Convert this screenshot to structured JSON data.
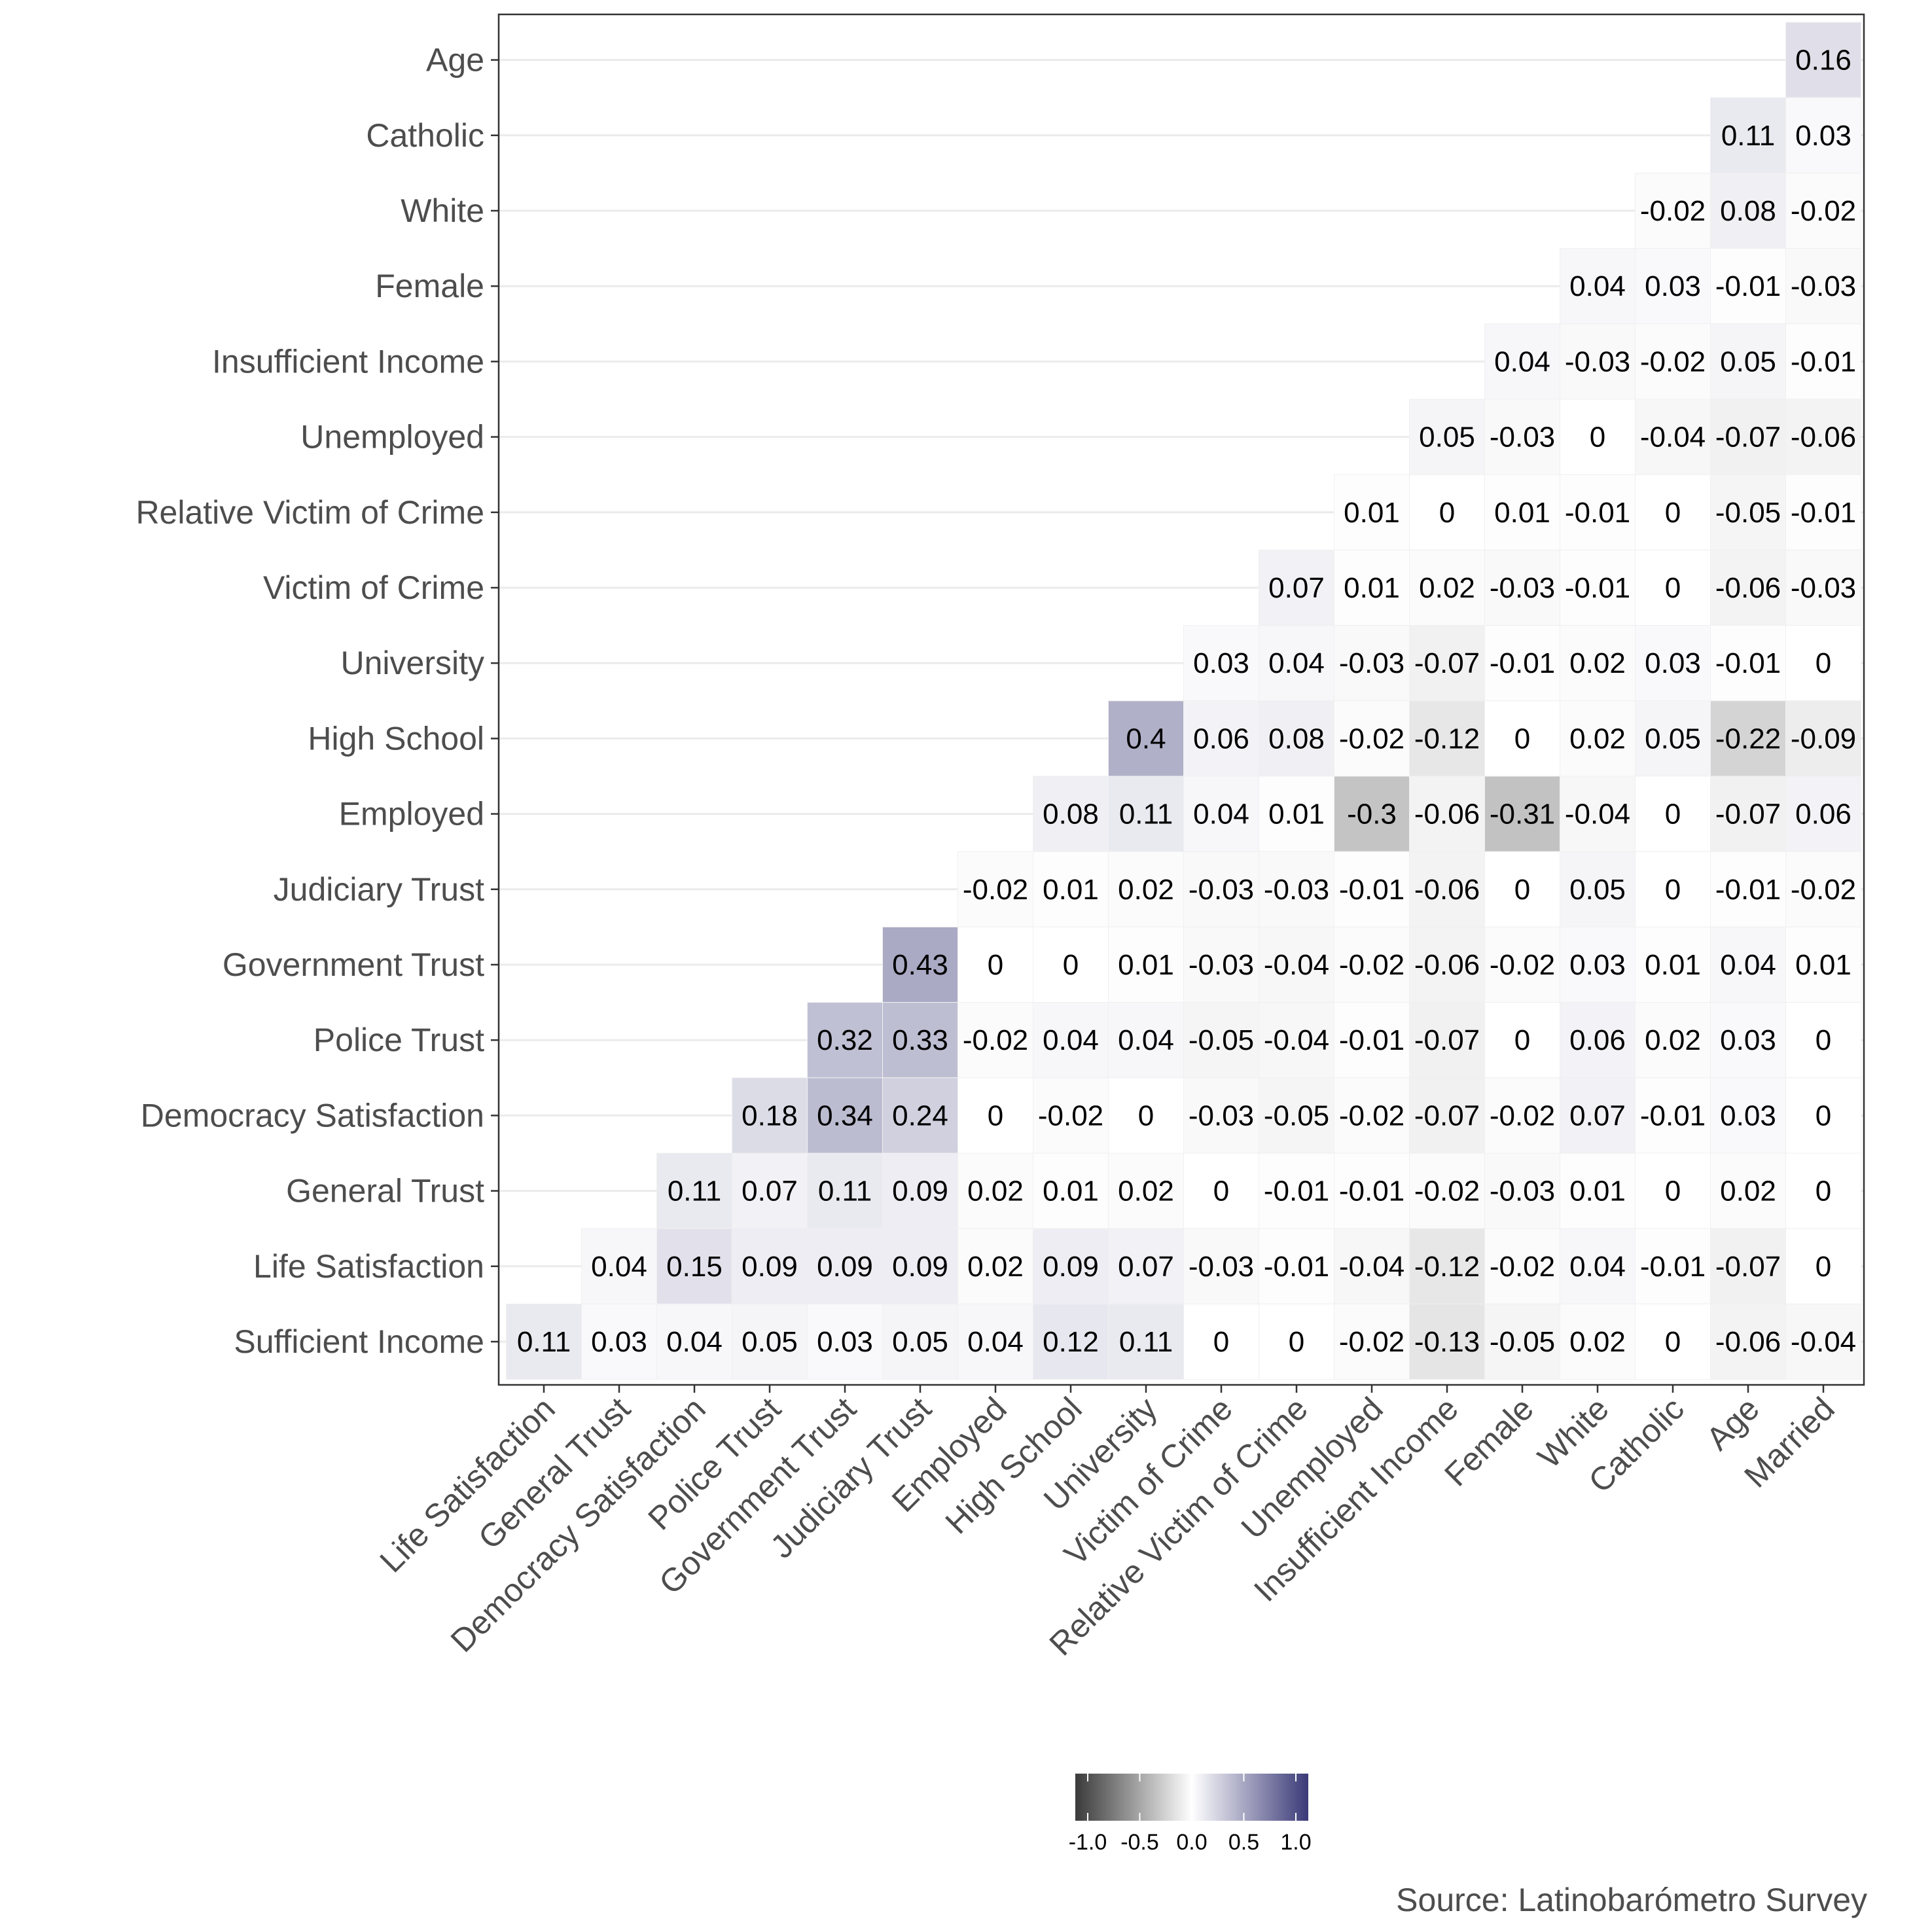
{
  "chart_data": {
    "type": "heatmap",
    "x_categories": [
      "Life Satisfaction",
      "General Trust",
      "Democracy Satisfaction",
      "Police Trust",
      "Government Trust",
      "Judiciary Trust",
      "Employed",
      "High School",
      "University",
      "Victim of Crime",
      "Relative Victim of Crime",
      "Unemployed",
      "Insufficient Income",
      "Female",
      "White",
      "Catholic",
      "Age",
      "Married"
    ],
    "y_categories": [
      "Age",
      "Catholic",
      "White",
      "Female",
      "Insufficient Income",
      "Unemployed",
      "Relative Victim of Crime",
      "Victim of Crime",
      "University",
      "High School",
      "Employed",
      "Judiciary Trust",
      "Government Trust",
      "Police Trust",
      "Democracy Satisfaction",
      "General Trust",
      "Life Satisfaction",
      "Sufficient Income"
    ],
    "values": [
      [
        null,
        null,
        null,
        null,
        null,
        null,
        null,
        null,
        null,
        null,
        null,
        null,
        null,
        null,
        null,
        null,
        null,
        0.16
      ],
      [
        null,
        null,
        null,
        null,
        null,
        null,
        null,
        null,
        null,
        null,
        null,
        null,
        null,
        null,
        null,
        null,
        0.11,
        0.03
      ],
      [
        null,
        null,
        null,
        null,
        null,
        null,
        null,
        null,
        null,
        null,
        null,
        null,
        null,
        null,
        null,
        -0.02,
        0.08,
        -0.02
      ],
      [
        null,
        null,
        null,
        null,
        null,
        null,
        null,
        null,
        null,
        null,
        null,
        null,
        null,
        null,
        0.04,
        0.03,
        -0.01,
        -0.03
      ],
      [
        null,
        null,
        null,
        null,
        null,
        null,
        null,
        null,
        null,
        null,
        null,
        null,
        null,
        0.04,
        -0.03,
        -0.02,
        0.05,
        -0.01
      ],
      [
        null,
        null,
        null,
        null,
        null,
        null,
        null,
        null,
        null,
        null,
        null,
        null,
        0.05,
        -0.03,
        0,
        -0.04,
        -0.07,
        -0.06
      ],
      [
        null,
        null,
        null,
        null,
        null,
        null,
        null,
        null,
        null,
        null,
        null,
        0.01,
        0,
        0.01,
        -0.01,
        0,
        -0.05,
        -0.01
      ],
      [
        null,
        null,
        null,
        null,
        null,
        null,
        null,
        null,
        null,
        null,
        0.07,
        0.01,
        0.02,
        -0.03,
        -0.01,
        0,
        -0.06,
        -0.03
      ],
      [
        null,
        null,
        null,
        null,
        null,
        null,
        null,
        null,
        null,
        0.03,
        0.04,
        -0.03,
        -0.07,
        -0.01,
        0.02,
        0.03,
        -0.01,
        0
      ],
      [
        null,
        null,
        null,
        null,
        null,
        null,
        null,
        null,
        0.4,
        0.06,
        0.08,
        -0.02,
        -0.12,
        0,
        0.02,
        0.05,
        -0.22,
        -0.09
      ],
      [
        null,
        null,
        null,
        null,
        null,
        null,
        null,
        0.08,
        0.11,
        0.04,
        0.01,
        -0.3,
        -0.06,
        -0.31,
        -0.04,
        0,
        -0.07,
        0.06
      ],
      [
        null,
        null,
        null,
        null,
        null,
        null,
        -0.02,
        0.01,
        0.02,
        -0.03,
        -0.03,
        -0.01,
        -0.06,
        0,
        0.05,
        0,
        -0.01,
        -0.02
      ],
      [
        null,
        null,
        null,
        null,
        null,
        0.43,
        0,
        0,
        0.01,
        -0.03,
        -0.04,
        -0.02,
        -0.06,
        -0.02,
        0.03,
        0.01,
        0.04,
        0.01
      ],
      [
        null,
        null,
        null,
        null,
        0.32,
        0.33,
        -0.02,
        0.04,
        0.04,
        -0.05,
        -0.04,
        -0.01,
        -0.07,
        0,
        0.06,
        0.02,
        0.03,
        0
      ],
      [
        null,
        null,
        null,
        0.18,
        0.34,
        0.24,
        0,
        -0.02,
        0,
        -0.03,
        -0.05,
        -0.02,
        -0.07,
        -0.02,
        0.07,
        -0.01,
        0.03,
        0
      ],
      [
        null,
        null,
        0.11,
        0.07,
        0.11,
        0.09,
        0.02,
        0.01,
        0.02,
        0,
        -0.01,
        -0.01,
        -0.02,
        -0.03,
        0.01,
        0,
        0.02,
        0
      ],
      [
        null,
        0.04,
        0.15,
        0.09,
        0.09,
        0.09,
        0.02,
        0.09,
        0.07,
        -0.03,
        -0.01,
        -0.04,
        -0.12,
        -0.02,
        0.04,
        -0.01,
        -0.07,
        0
      ],
      [
        0.11,
        0.03,
        0.04,
        0.05,
        0.03,
        0.05,
        0.04,
        0.12,
        0.11,
        0,
        0,
        -0.02,
        -0.13,
        -0.05,
        0.02,
        0,
        -0.06,
        -0.04
      ]
    ],
    "color_scale": {
      "low": "#3a3a3a",
      "mid": "#ffffff",
      "high": "#3b3a78",
      "limits": [
        -1,
        1
      ],
      "ticks": [
        "-1.0",
        "-0.5",
        "0.0",
        "0.5",
        "1.0"
      ]
    },
    "grid": true,
    "legend_position": "bottom",
    "title": "",
    "xlabel": "",
    "ylabel": "",
    "caption": "Source: Latinobarómetro Survey"
  }
}
